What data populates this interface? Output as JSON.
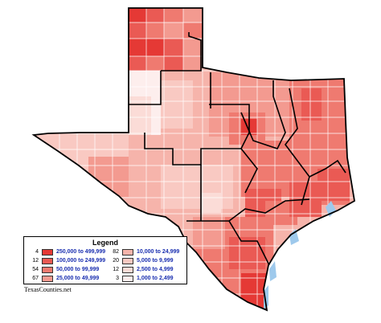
{
  "legend": {
    "title": "Legend",
    "items": [
      {
        "count": "4",
        "range": "250,000 to 499,999",
        "color": "#e53935"
      },
      {
        "count": "12",
        "range": "100,000 to 249,999",
        "color": "#ea5a54"
      },
      {
        "count": "54",
        "range": "50,000 to 99,999",
        "color": "#ef7a70"
      },
      {
        "count": "67",
        "range": "25,000 to 49,999",
        "color": "#f39a90"
      },
      {
        "count": "82",
        "range": "10,000 to 24,999",
        "color": "#f6b4ab"
      },
      {
        "count": "20",
        "range": "5,000 to 9,999",
        "color": "#f9c9c2"
      },
      {
        "count": "12",
        "range": "2,500 to 4,999",
        "color": "#fbdcd7"
      },
      {
        "count": "3",
        "range": "1,000 to 2,499",
        "color": "#fdeeed"
      }
    ]
  },
  "credit": "TexasCounties.net",
  "colors": {
    "outline": "#000000",
    "county_line": "#ffffff",
    "water": "#9ec9ec"
  }
}
